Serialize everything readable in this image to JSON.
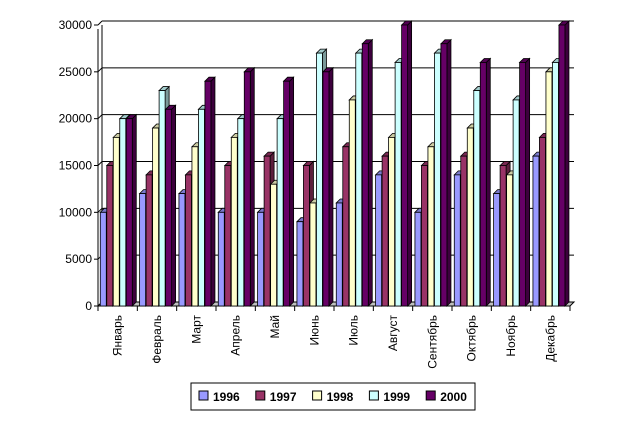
{
  "chart_data": {
    "type": "bar",
    "style": "3d-clustered-column",
    "categories": [
      "Январь",
      "Февраль",
      "Март",
      "Апрель",
      "Май",
      "Июнь",
      "Июль",
      "Август",
      "Сентябрь",
      "Октябрь",
      "Ноябрь",
      "Декабрь"
    ],
    "series": [
      {
        "name": "1996",
        "color": "#9999ff",
        "values": [
          10000,
          12000,
          12000,
          10000,
          10000,
          9000,
          11000,
          14000,
          10000,
          14000,
          12000,
          16000
        ]
      },
      {
        "name": "1997",
        "color": "#993366",
        "values": [
          15000,
          14000,
          14000,
          15000,
          16000,
          15000,
          17000,
          16000,
          15000,
          16000,
          15000,
          18000
        ]
      },
      {
        "name": "1998",
        "color": "#ffffcc",
        "values": [
          18000,
          19000,
          17000,
          18000,
          13000,
          11000,
          22000,
          18000,
          17000,
          19000,
          14000,
          25000
        ]
      },
      {
        "name": "1999",
        "color": "#ccffff",
        "values": [
          20000,
          23000,
          21000,
          20000,
          20000,
          27000,
          27000,
          26000,
          27000,
          23000,
          22000,
          26000
        ]
      },
      {
        "name": "2000",
        "color": "#660066",
        "values": [
          20000,
          21000,
          24000,
          25000,
          24000,
          25000,
          28000,
          30000,
          28000,
          26000,
          26000,
          30000
        ]
      }
    ],
    "yticks": [
      "0",
      "5000",
      "10000",
      "15000",
      "20000",
      "25000",
      "30000"
    ],
    "ylim": [
      0,
      30000
    ],
    "grid": true,
    "legend_position": "bottom"
  }
}
